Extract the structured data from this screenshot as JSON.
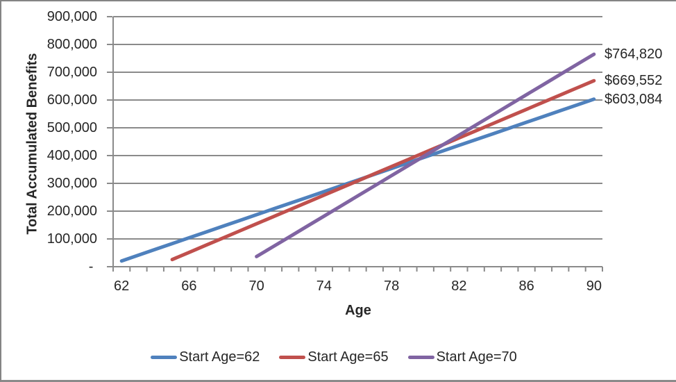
{
  "colors": {
    "background": "#FFFFFF",
    "grid": "#8A8A8A",
    "axis": "#8A8A8A",
    "text": "#262626",
    "frame_border": "#848484"
  },
  "chart_data": {
    "type": "line",
    "title": "",
    "xlabel": "Age",
    "ylabel": "Total Accumulated Benefits",
    "grid": "horizontal",
    "legend_position": "bottom",
    "x_axis": {
      "min_age": 62,
      "max_age": 90,
      "minor_tick_every_year": true,
      "label_ages": [
        62,
        66,
        70,
        74,
        78,
        82,
        86,
        90
      ]
    },
    "y_axis": {
      "min": 0,
      "max": 900000,
      "step": 100000,
      "tick_labels": [
        "900,000",
        "800,000",
        "700,000",
        "600,000",
        "500,000",
        "400,000",
        "300,000",
        "200,000",
        "100,000",
        "- "
      ]
    },
    "series": [
      {
        "name": "Start Age=62",
        "color": "#4F81BD",
        "start_age": 62,
        "end_age": 90,
        "annual_benefit": 20796,
        "end_value": 603084,
        "end_label": "$603,084",
        "values": [
          20796,
          41592,
          62388,
          83184,
          103980,
          124776,
          145572,
          166368,
          187164,
          207960,
          228756,
          249552,
          270348,
          291144,
          311940,
          332736,
          353532,
          374328,
          395124,
          415920,
          436716,
          457512,
          478308,
          499104,
          519900,
          540696,
          561492,
          582288,
          603084
        ]
      },
      {
        "name": "Start Age=65",
        "color": "#C0504D",
        "start_age": 65,
        "end_age": 90,
        "annual_benefit": 25752,
        "end_value": 669552,
        "end_label": "$669,552",
        "values": [
          25752,
          51504,
          77256,
          103008,
          128760,
          154512,
          180264,
          206016,
          231768,
          257520,
          283272,
          309024,
          334776,
          360528,
          386280,
          412032,
          437784,
          463536,
          489288,
          515040,
          540792,
          566544,
          592296,
          618048,
          643800,
          669552
        ]
      },
      {
        "name": "Start Age=70",
        "color": "#8064A2",
        "start_age": 70,
        "end_age": 90,
        "annual_benefit": 36420,
        "end_value": 764820,
        "end_label": "$764,820",
        "values": [
          36420,
          72840,
          109260,
          145680,
          182100,
          218520,
          254940,
          291360,
          327780,
          364200,
          400620,
          437040,
          473460,
          509880,
          546300,
          582720,
          619140,
          655560,
          691980,
          728400,
          764820
        ]
      }
    ]
  }
}
